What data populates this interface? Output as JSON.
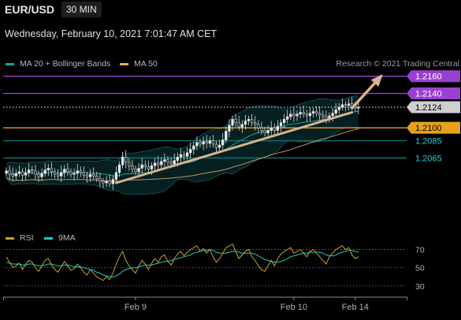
{
  "header": {
    "symbol": "EUR/USD",
    "timeframe": "30 MIN",
    "datetime": "Wednesday, February 10, 2021 7:01:47 AM CET"
  },
  "legend": {
    "items": [
      {
        "label": "MA 20 + Bollinger Bands",
        "color": "#14a3a3"
      },
      {
        "label": "MA 50",
        "color": "#e0a86b"
      }
    ],
    "credit": "Research © 2021 Trading Central"
  },
  "rsi_legend": {
    "items": [
      {
        "label": "RSI",
        "color": "#c9a227"
      },
      {
        "label": "9MA",
        "color": "#28c8c8"
      }
    ]
  },
  "chart_data": [
    {
      "type": "candlestick",
      "title": "EUR/USD",
      "timeframe": "30 MIN",
      "ylim": [
        1.1992,
        1.2168
      ],
      "x_ticks": [
        {
          "label": "Feb 9",
          "index": 40
        },
        {
          "label": "Feb 10",
          "index": 89
        },
        {
          "label": "Feb 14",
          "index": 108
        }
      ],
      "closes": [
        1.205,
        1.2046,
        1.2044,
        1.2047,
        1.2049,
        1.2045,
        1.2048,
        1.2051,
        1.205,
        1.2046,
        1.2043,
        1.2047,
        1.2051,
        1.2053,
        1.2049,
        1.2046,
        1.2044,
        1.2048,
        1.2052,
        1.2049,
        1.2046,
        1.2047,
        1.205,
        1.2048,
        1.2045,
        1.2043,
        1.2046,
        1.2044,
        1.2041,
        1.2038,
        1.2036,
        1.2038,
        1.2035,
        1.204,
        1.2048,
        1.2057,
        1.2066,
        1.206,
        1.2056,
        1.2052,
        1.2049,
        1.2053,
        1.2057,
        1.2055,
        1.2052,
        1.2056,
        1.2059,
        1.2057,
        1.2061,
        1.2063,
        1.206,
        1.2058,
        1.2062,
        1.2066,
        1.2069,
        1.2067,
        1.2071,
        1.2075,
        1.2079,
        1.2083,
        1.2081,
        1.2084,
        1.2082,
        1.2085,
        1.2081,
        1.2077,
        1.208,
        1.2086,
        1.2096,
        1.2103,
        1.211,
        1.2106,
        1.2101,
        1.2104,
        1.2108,
        1.211,
        1.2106,
        1.2104,
        1.21,
        1.2097,
        1.2094,
        1.2097,
        1.21,
        1.2097,
        1.2102,
        1.2106,
        1.211,
        1.2113,
        1.2116,
        1.2114,
        1.2116,
        1.2118,
        1.2116,
        1.2114,
        1.2117,
        1.2119,
        1.2117,
        1.2115,
        1.2113,
        1.211,
        1.2114,
        1.2117,
        1.2121,
        1.2124,
        1.2127,
        1.2126,
        1.2128,
        1.2125,
        1.2123,
        1.2124
      ],
      "series": [
        {
          "name": "MA 20 + Bollinger Bands",
          "color": "#14a3a3"
        },
        {
          "name": "MA 50",
          "color": "#e0a86b"
        }
      ],
      "levels": [
        {
          "value": 1.216,
          "label": "1.2160",
          "color": "#9b3fd1",
          "style": "solid",
          "tag": "box",
          "text_color": "#ffffff"
        },
        {
          "value": 1.214,
          "label": "1.2140",
          "color": "#9b3fd1",
          "style": "solid",
          "tag": "box",
          "text_color": "#ffffff"
        },
        {
          "value": 1.2124,
          "label": "1.2124",
          "color": "#cfcfcf",
          "style": "dotted",
          "tag": "box",
          "text_color": "#000000"
        },
        {
          "value": 1.21,
          "label": "1.2100",
          "color": "#e6a21d",
          "style": "solid",
          "tag": "box",
          "text_color": "#000000"
        },
        {
          "value": 1.2085,
          "label": "1.2085",
          "color": "#0e6f72",
          "style": "solid",
          "tag": "text",
          "text_color": "#2bd1d1"
        },
        {
          "value": 1.2065,
          "label": "1.2065",
          "color": "#0e6f72",
          "style": "solid",
          "tag": "text",
          "text_color": "#2bd1d1"
        }
      ],
      "trend_line": {
        "from": [
          34,
          1.2036
        ],
        "to": [
          107,
          1.2118
        ],
        "color": "#d9b38c"
      },
      "arrow": {
        "from": [
          107,
          1.2123
        ],
        "to": [
          116,
          1.216
        ],
        "color": "#d9b38c"
      }
    },
    {
      "type": "line",
      "title": "RSI",
      "ylim": [
        22,
        80
      ],
      "y_ticks": [
        70,
        50,
        30
      ],
      "series": [
        {
          "name": "RSI",
          "color": "#c9a227",
          "values": [
            62,
            56,
            50,
            52,
            55,
            48,
            54,
            58,
            56,
            50,
            46,
            52,
            58,
            60,
            53,
            48,
            45,
            51,
            57,
            52,
            47,
            49,
            54,
            50,
            45,
            42,
            48,
            44,
            40,
            38,
            36,
            40,
            37,
            44,
            54,
            62,
            68,
            58,
            52,
            48,
            44,
            52,
            58,
            54,
            48,
            55,
            60,
            56,
            62,
            64,
            57,
            53,
            60,
            65,
            68,
            63,
            67,
            70,
            72,
            74,
            68,
            71,
            66,
            70,
            62,
            56,
            60,
            66,
            72,
            74,
            76,
            68,
            60,
            64,
            68,
            70,
            62,
            58,
            52,
            48,
            46,
            52,
            58,
            52,
            60,
            65,
            68,
            70,
            72,
            66,
            68,
            70,
            66,
            62,
            68,
            70,
            66,
            62,
            58,
            54,
            62,
            66,
            70,
            72,
            74,
            70,
            72,
            64,
            60,
            62
          ]
        },
        {
          "name": "9MA",
          "color": "#28c8c8",
          "values": [
            56,
            55,
            54,
            54,
            54,
            53,
            53,
            54,
            54,
            53,
            52,
            52,
            53,
            54,
            54,
            53,
            52,
            52,
            53,
            53,
            52,
            51,
            51,
            51,
            50,
            49,
            48,
            47,
            45,
            44,
            42,
            41,
            40,
            40,
            41,
            43,
            46,
            48,
            49,
            50,
            50,
            51,
            52,
            53,
            53,
            53,
            54,
            55,
            56,
            57,
            57,
            58,
            59,
            60,
            61,
            62,
            63,
            64,
            66,
            67,
            68,
            69,
            69,
            70,
            69,
            67,
            66,
            66,
            66,
            67,
            68,
            68,
            67,
            66,
            66,
            66,
            66,
            65,
            63,
            61,
            59,
            58,
            57,
            56,
            56,
            57,
            58,
            60,
            62,
            63,
            64,
            65,
            66,
            66,
            67,
            67,
            67,
            67,
            66,
            64,
            63,
            63,
            64,
            66,
            67,
            68,
            69,
            69,
            68,
            67
          ]
        }
      ]
    }
  ]
}
